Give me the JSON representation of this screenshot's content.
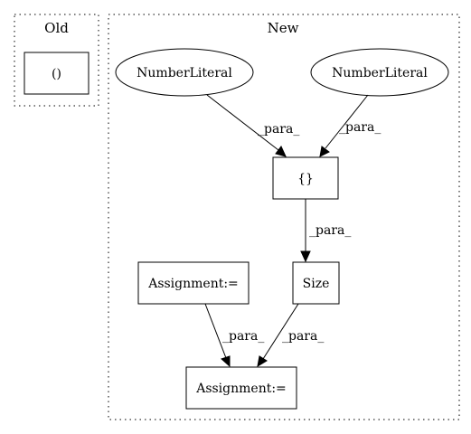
{
  "clusters": {
    "old": {
      "label": "Old"
    },
    "new": {
      "label": "New"
    }
  },
  "nodes": {
    "old_paren": {
      "label": "()"
    },
    "number_literal_1": {
      "label": "NumberLiteral"
    },
    "number_literal_2": {
      "label": "NumberLiteral"
    },
    "braces": {
      "label": "{}"
    },
    "size": {
      "label": "Size"
    },
    "assignment_left": {
      "label": "Assignment:="
    },
    "assignment_bottom": {
      "label": "Assignment:="
    }
  },
  "edges": {
    "nl1_to_braces": {
      "label": "_para_"
    },
    "nl2_to_braces": {
      "label": "_para_"
    },
    "braces_to_size": {
      "label": "_para_"
    },
    "assign_to_assign": {
      "label": "_para_"
    },
    "size_to_assign": {
      "label": "_para_"
    }
  }
}
